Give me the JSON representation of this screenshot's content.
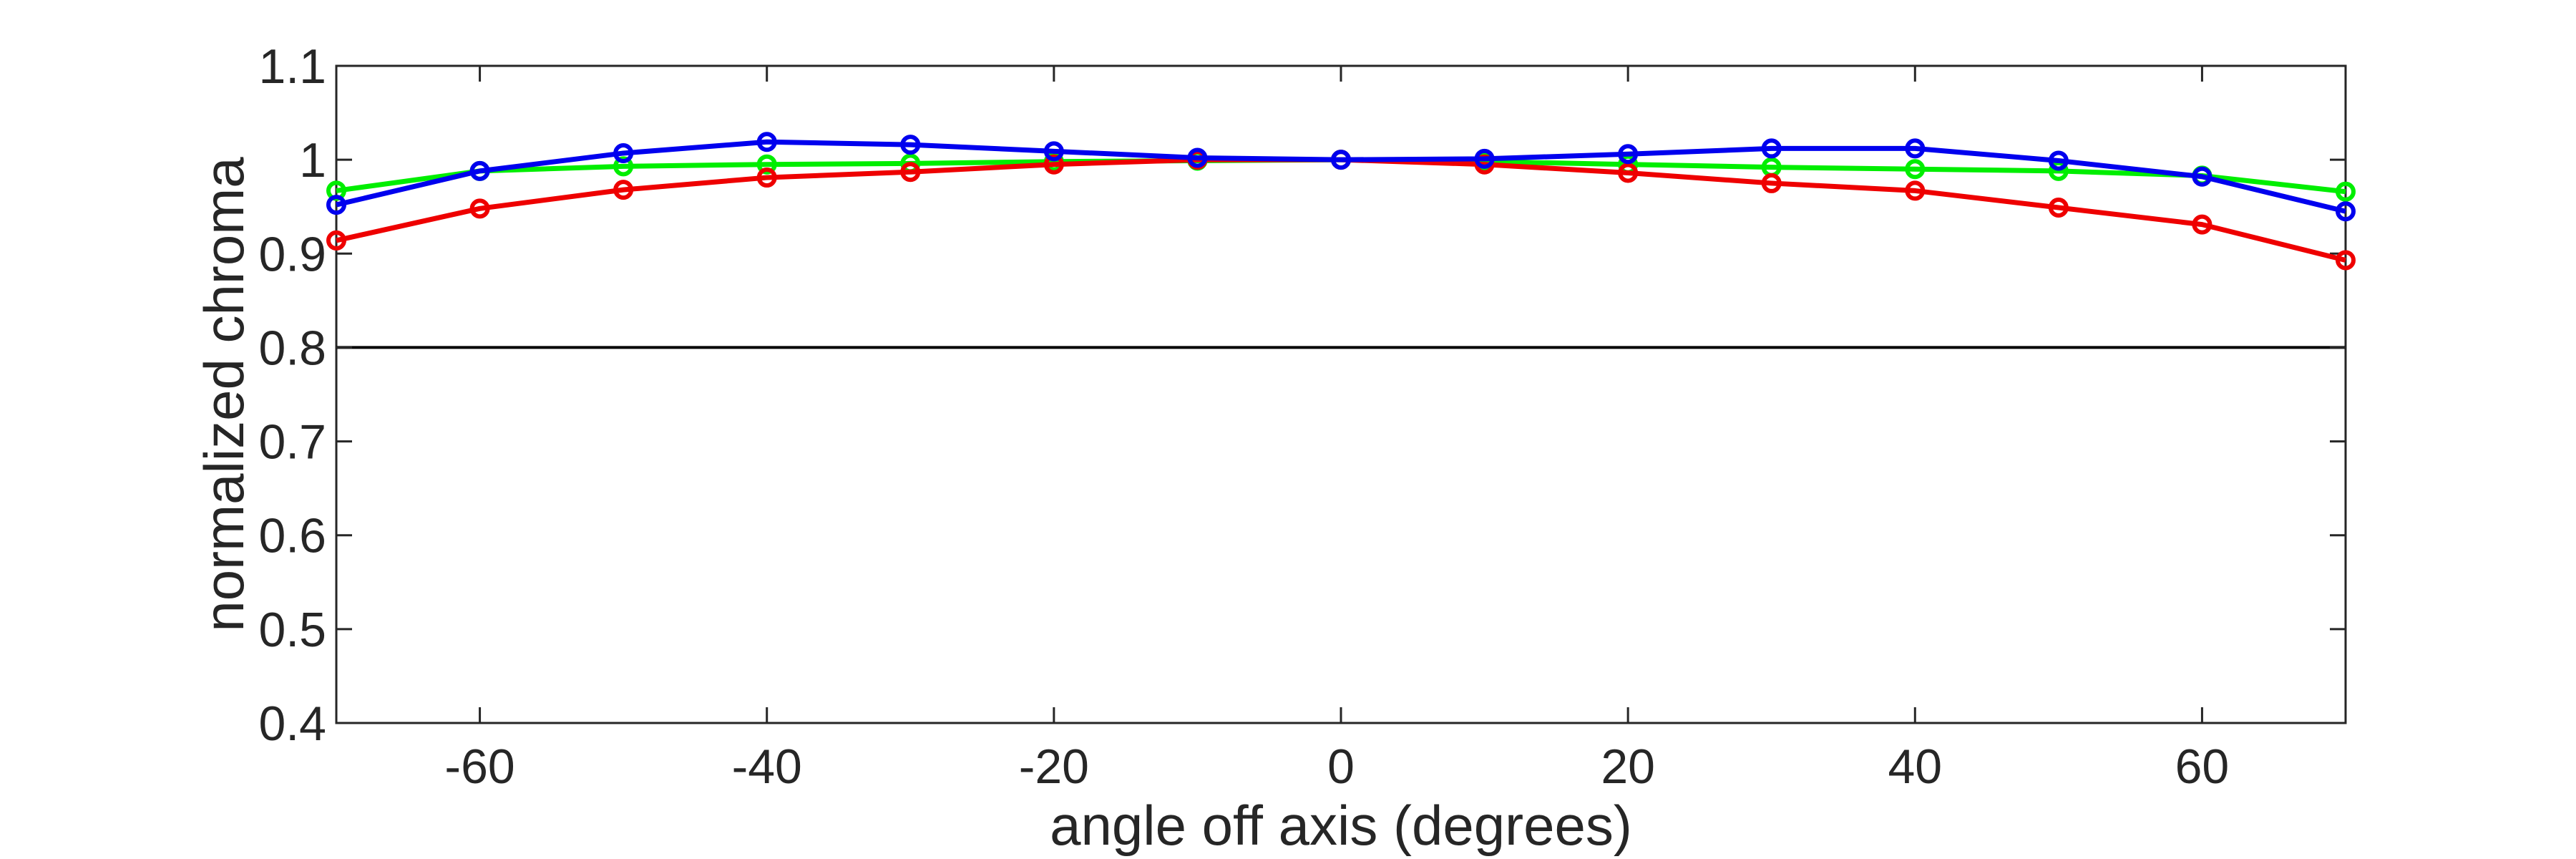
{
  "chart_data": {
    "type": "line",
    "title": "",
    "xlabel": "angle off axis (degrees)",
    "ylabel": "normalized chroma",
    "xlim": [
      -70,
      70
    ],
    "ylim": [
      0.4,
      1.1
    ],
    "xticks": [
      -60,
      -40,
      -20,
      0,
      20,
      40,
      60
    ],
    "xtick_labels": [
      "-60",
      "-40",
      "-20",
      "0",
      "20",
      "40",
      "60"
    ],
    "yticks": [
      0.4,
      0.5,
      0.6,
      0.7,
      0.8,
      0.9,
      1.0,
      1.1
    ],
    "ytick_labels": [
      "0.4",
      "0.5",
      "0.6",
      "0.7",
      "0.8",
      "0.9",
      "1",
      "1.1"
    ],
    "reference_line": 0.8,
    "grid": false,
    "box": true,
    "x": [
      -70,
      -60,
      -50,
      -40,
      -30,
      -20,
      -10,
      0,
      10,
      20,
      30,
      40,
      50,
      60,
      70
    ],
    "series": [
      {
        "color": "#00ee00",
        "values": [
          0.967,
          0.988,
          0.993,
          0.995,
          0.996,
          0.998,
          0.999,
          1.0,
          0.998,
          0.995,
          0.992,
          0.99,
          0.988,
          0.983,
          0.966
        ]
      },
      {
        "color": "#ee0000",
        "values": [
          0.914,
          0.948,
          0.968,
          0.981,
          0.987,
          0.995,
          1.0,
          1.0,
          0.995,
          0.986,
          0.975,
          0.967,
          0.949,
          0.931,
          0.893
        ]
      },
      {
        "color": "#0000ee",
        "values": [
          0.952,
          0.988,
          1.007,
          1.019,
          1.016,
          1.009,
          1.002,
          1.0,
          1.001,
          1.006,
          1.012,
          1.012,
          0.999,
          0.982,
          0.945
        ]
      }
    ]
  }
}
